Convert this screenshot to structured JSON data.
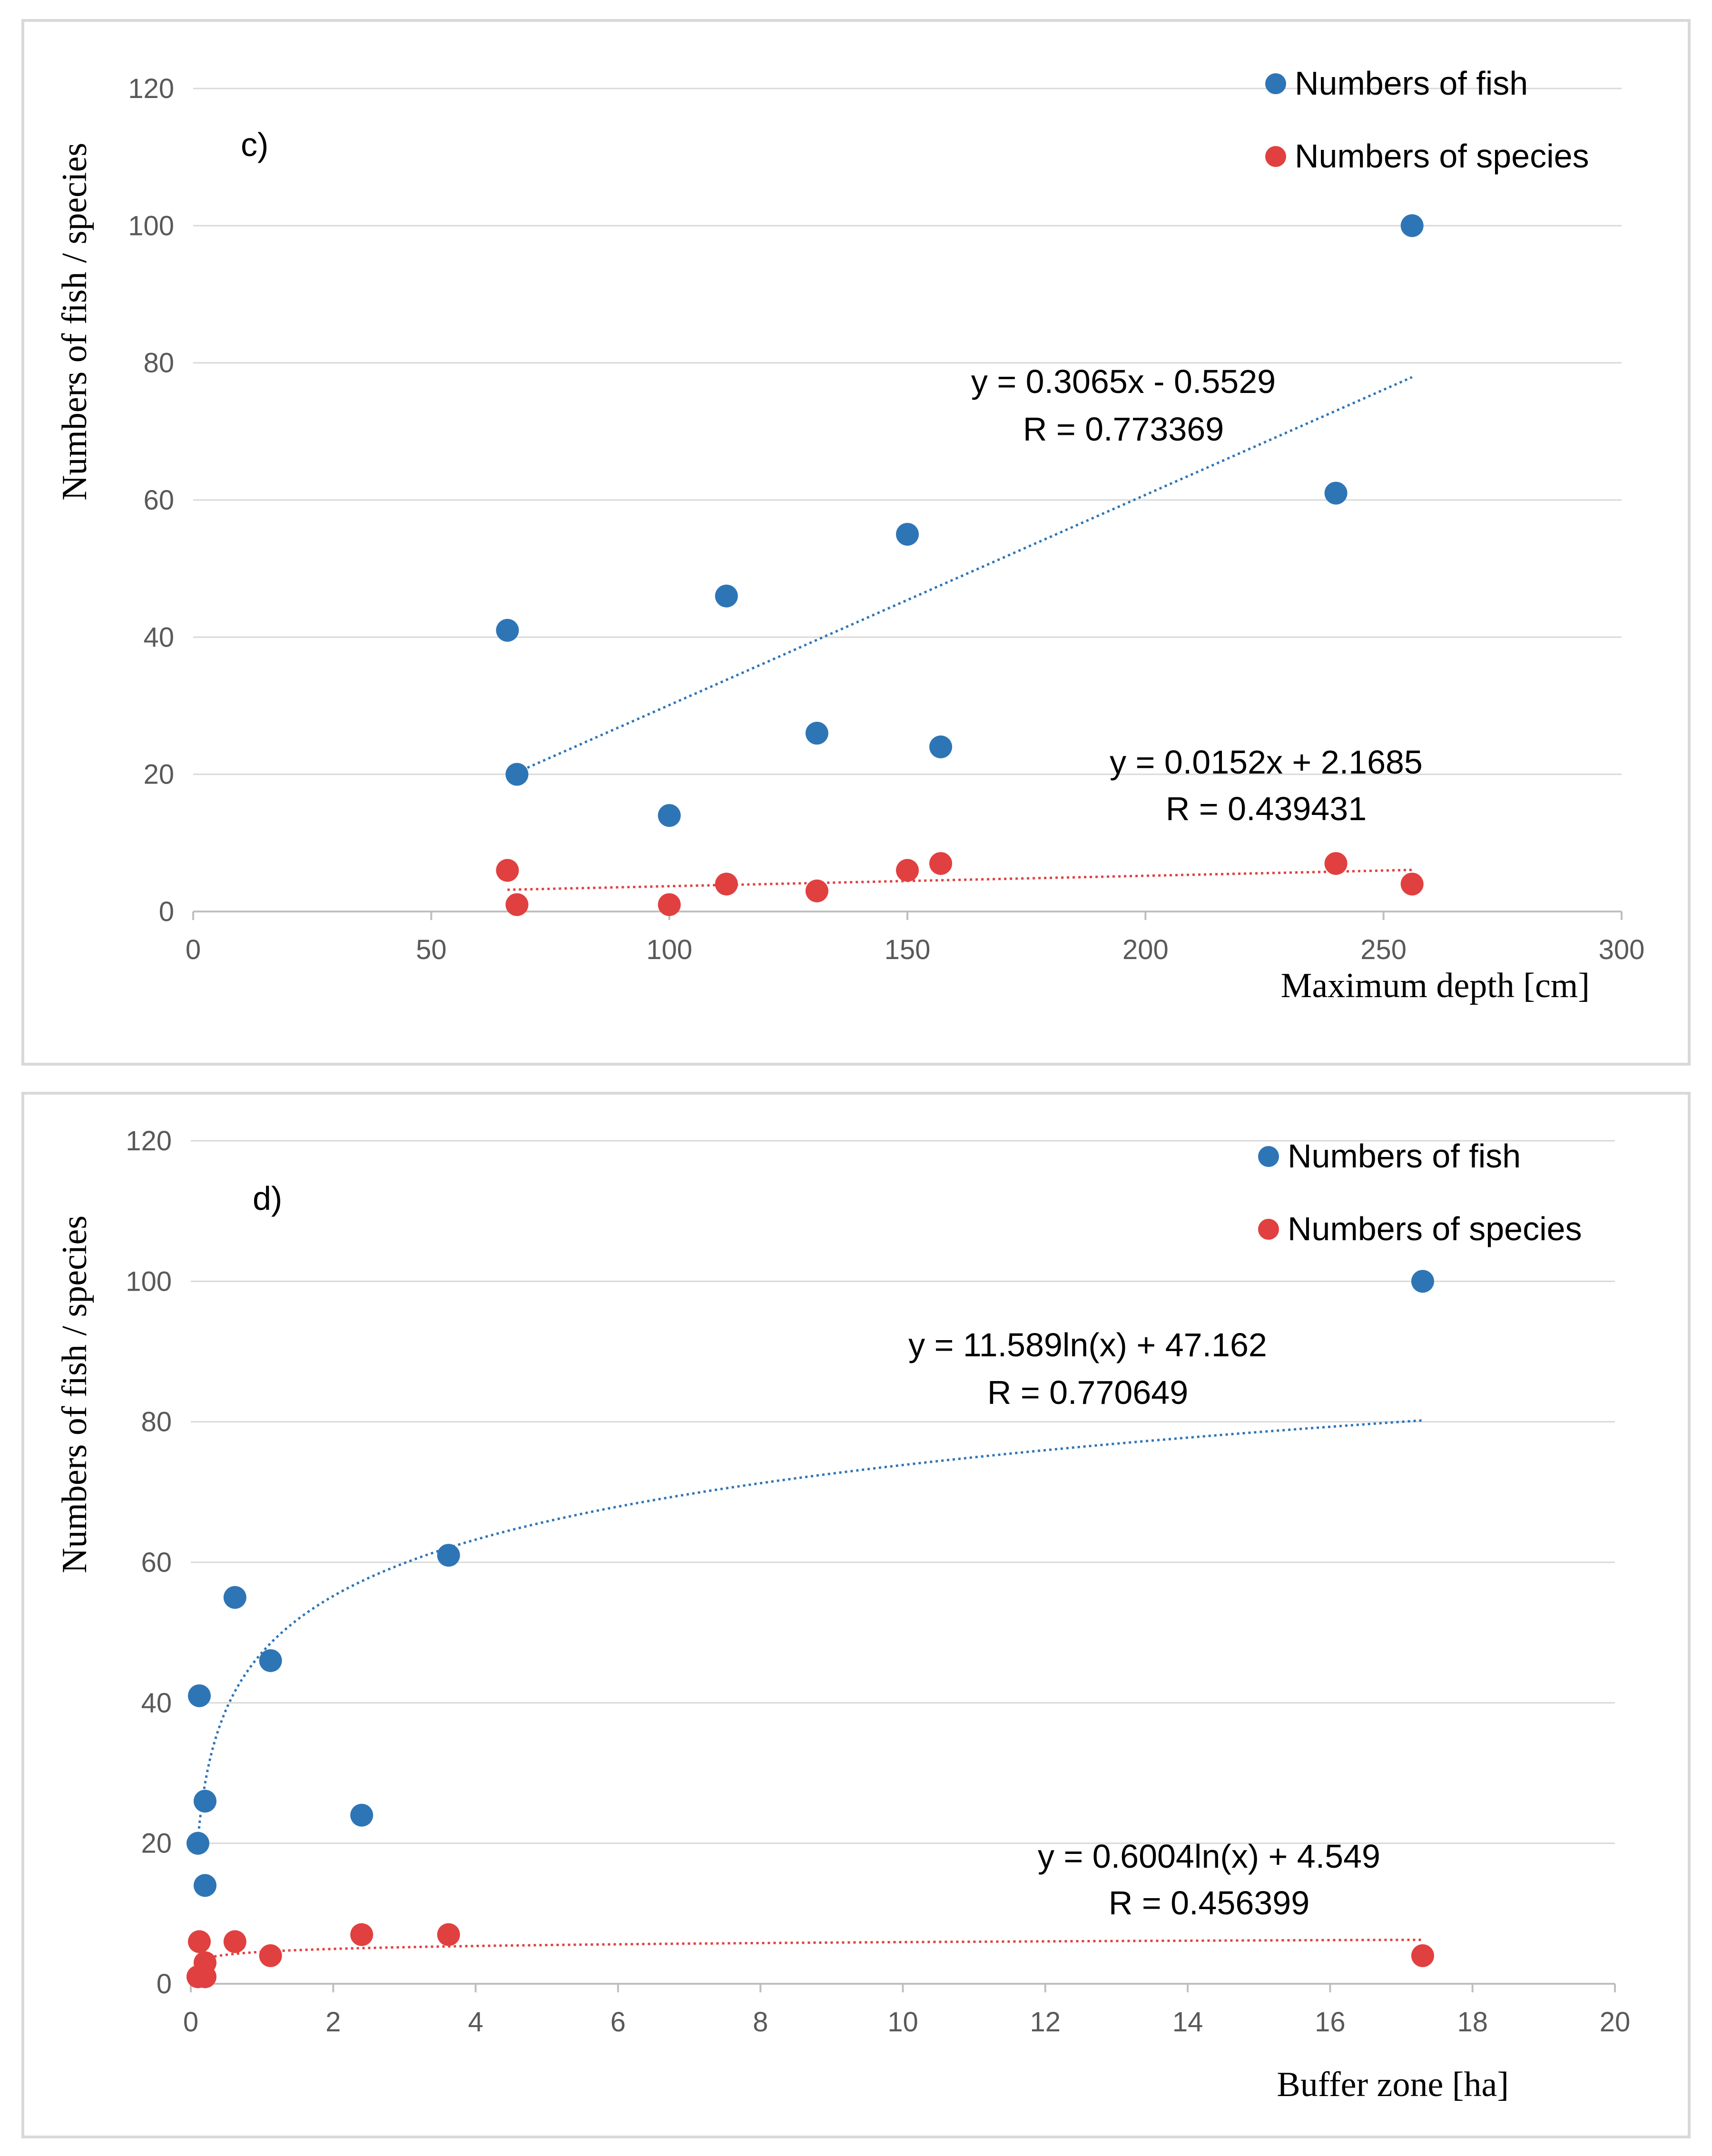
{
  "colors": {
    "fish": "#2E75B6",
    "species": "#E0403F",
    "grid": "#d9d9d9",
    "axis": "#bfbfbf"
  },
  "chart_data": [
    {
      "type": "scatter",
      "panel_label": "c)",
      "xlabel": "Maximum depth  [cm]",
      "ylabel": "Numbers of fish / species",
      "xlim": [
        0,
        300
      ],
      "ylim": [
        0,
        120
      ],
      "xticks": [
        0,
        50,
        100,
        150,
        200,
        250,
        300
      ],
      "yticks": [
        0,
        20,
        40,
        60,
        80,
        100,
        120
      ],
      "grid": "horizontal",
      "legend_position": "top-right",
      "series": [
        {
          "name": "Numbers of fish",
          "color": "#2E75B6",
          "points": [
            [
              66,
              41
            ],
            [
              68,
              20
            ],
            [
              100,
              14
            ],
            [
              112,
              46
            ],
            [
              131,
              26
            ],
            [
              150,
              55
            ],
            [
              157,
              24
            ],
            [
              240,
              61
            ],
            [
              256,
              100
            ]
          ],
          "trendline": {
            "kind": "linear",
            "a": 0.3065,
            "b": -0.5529,
            "x_range": [
              68,
              256
            ],
            "equation": "y = 0.3065x - 0.5529",
            "r_text": "R = 0.773369"
          }
        },
        {
          "name": "Numbers of species",
          "color": "#E0403F",
          "points": [
            [
              66,
              6
            ],
            [
              68,
              1
            ],
            [
              100,
              1
            ],
            [
              112,
              4
            ],
            [
              131,
              3
            ],
            [
              150,
              6
            ],
            [
              157,
              7
            ],
            [
              240,
              7
            ],
            [
              256,
              4
            ]
          ],
          "trendline": {
            "kind": "linear",
            "a": 0.0152,
            "b": 2.1685,
            "x_range": [
              66,
              256
            ],
            "equation": "y = 0.0152x + 2.1685",
            "r_text": "R = 0.439431"
          }
        }
      ]
    },
    {
      "type": "scatter",
      "panel_label": "d)",
      "xlabel": "Buffer zone [ha]",
      "ylabel": "Numbers of fish / species",
      "xlim": [
        0,
        20
      ],
      "ylim": [
        0,
        120
      ],
      "xticks": [
        0,
        2,
        4,
        6,
        8,
        10,
        12,
        14,
        16,
        18,
        20
      ],
      "yticks": [
        0,
        20,
        40,
        60,
        80,
        100,
        120
      ],
      "grid": "horizontal",
      "legend_position": "top-right",
      "series": [
        {
          "name": "Numbers of fish",
          "color": "#2E75B6",
          "points": [
            [
              0.12,
              41
            ],
            [
              0.1,
              20
            ],
            [
              0.2,
              26
            ],
            [
              0.2,
              14
            ],
            [
              0.62,
              55
            ],
            [
              1.12,
              46
            ],
            [
              2.4,
              24
            ],
            [
              3.62,
              61
            ],
            [
              17.3,
              100
            ]
          ],
          "trendline": {
            "kind": "log",
            "a": 11.589,
            "b": 47.162,
            "x_range": [
              0.1,
              17.3
            ],
            "equation": "y = 11.589ln(x) + 47.162",
            "r_text": "R = 0.770649"
          }
        },
        {
          "name": "Numbers of species",
          "color": "#E0403F",
          "points": [
            [
              0.12,
              6
            ],
            [
              0.1,
              1
            ],
            [
              0.2,
              1
            ],
            [
              0.2,
              3
            ],
            [
              0.62,
              6
            ],
            [
              1.12,
              4
            ],
            [
              2.4,
              7
            ],
            [
              3.62,
              7
            ],
            [
              17.3,
              4
            ]
          ],
          "trendline": {
            "kind": "log",
            "a": 0.6004,
            "b": 4.549,
            "x_range": [
              0.1,
              17.3
            ],
            "equation": "y = 0.6004ln(x) + 4.549",
            "r_text": "R = 0.456399"
          }
        }
      ]
    }
  ]
}
